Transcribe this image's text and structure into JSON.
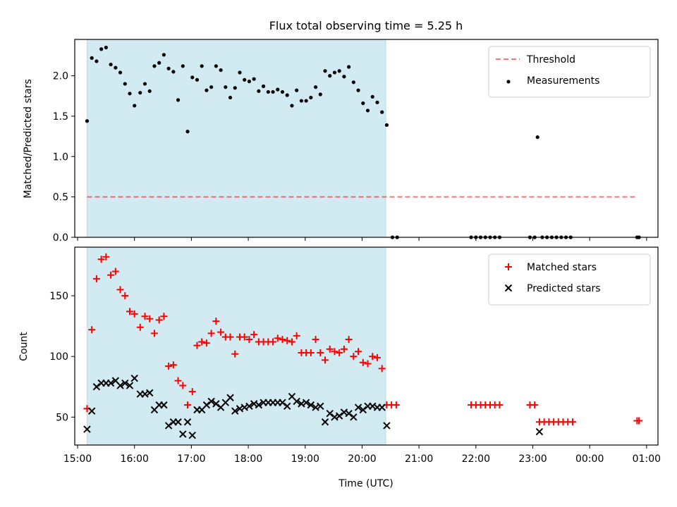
{
  "figure": {
    "title": "Flux total observing time = 5.25 h",
    "xlabel": "Time (UTC)"
  },
  "colors": {
    "shade": "#add8e6",
    "threshold": "#ff0000",
    "measurement": "#000000",
    "matched": "#ff0000",
    "predicted": "#000000"
  },
  "chart_data": [
    {
      "type": "scatter",
      "panel": "top",
      "ylabel": "Matched/Predicted stars",
      "xlim": [
        "14:57",
        "01:12"
      ],
      "ylim": [
        0,
        2.45
      ],
      "yticks": [
        0.0,
        0.5,
        1.0,
        1.5,
        2.0
      ],
      "ytick_labels": [
        "0.0",
        "0.5",
        "1.0",
        "1.5",
        "2.0"
      ],
      "legend_position": "top-right",
      "shaded_interval": [
        "15:10",
        "20:25"
      ],
      "threshold": {
        "name": "Threshold",
        "value": 0.5,
        "x_range": [
          "15:10",
          "00:50"
        ]
      },
      "series": [
        {
          "name": "Measurements",
          "points": [
            [
              "15:10",
              1.44
            ],
            [
              "15:15",
              2.22
            ],
            [
              "15:20",
              2.18
            ],
            [
              "15:25",
              2.33
            ],
            [
              "15:30",
              2.35
            ],
            [
              "15:35",
              2.14
            ],
            [
              "15:40",
              2.1
            ],
            [
              "15:45",
              2.04
            ],
            [
              "15:50",
              1.9
            ],
            [
              "15:55",
              1.78
            ],
            [
              "16:00",
              1.63
            ],
            [
              "16:06",
              1.79
            ],
            [
              "16:11",
              1.9
            ],
            [
              "16:16",
              1.81
            ],
            [
              "16:21",
              2.12
            ],
            [
              "16:26",
              2.16
            ],
            [
              "16:31",
              2.26
            ],
            [
              "16:36",
              2.09
            ],
            [
              "16:41",
              2.05
            ],
            [
              "16:46",
              1.7
            ],
            [
              "16:51",
              2.12
            ],
            [
              "16:56",
              1.31
            ],
            [
              "17:01",
              1.98
            ],
            [
              "17:06",
              1.95
            ],
            [
              "17:11",
              2.12
            ],
            [
              "17:16",
              1.82
            ],
            [
              "17:21",
              1.86
            ],
            [
              "17:26",
              2.12
            ],
            [
              "17:31",
              2.07
            ],
            [
              "17:36",
              1.86
            ],
            [
              "17:41",
              1.73
            ],
            [
              "17:46",
              1.85
            ],
            [
              "17:51",
              2.04
            ],
            [
              "17:56",
              1.95
            ],
            [
              "18:01",
              1.93
            ],
            [
              "18:06",
              1.96
            ],
            [
              "18:11",
              1.81
            ],
            [
              "18:16",
              1.87
            ],
            [
              "18:21",
              1.8
            ],
            [
              "18:26",
              1.8
            ],
            [
              "18:31",
              1.83
            ],
            [
              "18:36",
              1.8
            ],
            [
              "18:41",
              1.76
            ],
            [
              "18:46",
              1.63
            ],
            [
              "18:51",
              1.82
            ],
            [
              "18:56",
              1.69
            ],
            [
              "19:01",
              1.69
            ],
            [
              "19:06",
              1.73
            ],
            [
              "19:11",
              1.86
            ],
            [
              "19:16",
              1.77
            ],
            [
              "19:21",
              2.06
            ],
            [
              "19:26",
              2.0
            ],
            [
              "19:31",
              2.04
            ],
            [
              "19:36",
              2.06
            ],
            [
              "19:41",
              1.99
            ],
            [
              "19:46",
              2.11
            ],
            [
              "19:51",
              1.92
            ],
            [
              "19:56",
              1.82
            ],
            [
              "20:01",
              1.66
            ],
            [
              "20:06",
              1.57
            ],
            [
              "20:11",
              1.74
            ],
            [
              "20:16",
              1.67
            ],
            [
              "20:21",
              1.55
            ],
            [
              "20:26",
              1.39
            ],
            [
              "20:32",
              0.0
            ],
            [
              "20:37",
              0.0
            ],
            [
              "21:55",
              0.0
            ],
            [
              "22:00",
              0.0
            ],
            [
              "22:05",
              0.0
            ],
            [
              "22:10",
              0.0
            ],
            [
              "22:15",
              0.0
            ],
            [
              "22:20",
              0.0
            ],
            [
              "22:25",
              0.0
            ],
            [
              "22:57",
              0.0
            ],
            [
              "23:02",
              0.0
            ],
            [
              "23:05",
              1.24
            ],
            [
              "23:10",
              0.0
            ],
            [
              "23:15",
              0.0
            ],
            [
              "23:20",
              0.0
            ],
            [
              "23:25",
              0.0
            ],
            [
              "23:30",
              0.0
            ],
            [
              "23:35",
              0.0
            ],
            [
              "23:40",
              0.0
            ],
            [
              "00:50",
              0.0
            ],
            [
              "00:52",
              0.0
            ]
          ]
        }
      ]
    },
    {
      "type": "scatter",
      "panel": "bottom",
      "ylabel": "Count",
      "xlim": [
        "14:57",
        "01:12"
      ],
      "ylim": [
        27,
        190
      ],
      "yticks": [
        50,
        100,
        150
      ],
      "ytick_labels": [
        "50",
        "100",
        "150"
      ],
      "xticks": [
        "15:00",
        "16:00",
        "17:00",
        "18:00",
        "19:00",
        "20:00",
        "21:00",
        "22:00",
        "23:00",
        "00:00",
        "01:00"
      ],
      "xtick_labels": [
        "15:00",
        "16:00",
        "17:00",
        "18:00",
        "19:00",
        "20:00",
        "21:00",
        "22:00",
        "23:00",
        "00:00",
        "01:00"
      ],
      "legend_position": "top-right",
      "shaded_interval": [
        "15:10",
        "20:25"
      ],
      "series": [
        {
          "name": "Matched stars",
          "marker": "plus",
          "points": [
            [
              "15:10",
              57
            ],
            [
              "15:15",
              122
            ],
            [
              "15:20",
              164
            ],
            [
              "15:25",
              180
            ],
            [
              "15:30",
              182
            ],
            [
              "15:35",
              167
            ],
            [
              "15:40",
              170
            ],
            [
              "15:45",
              155
            ],
            [
              "15:50",
              150
            ],
            [
              "15:55",
              137
            ],
            [
              "16:00",
              135
            ],
            [
              "16:06",
              124
            ],
            [
              "16:11",
              133
            ],
            [
              "16:16",
              131
            ],
            [
              "16:21",
              119
            ],
            [
              "16:26",
              130
            ],
            [
              "16:31",
              133
            ],
            [
              "16:36",
              92
            ],
            [
              "16:41",
              93
            ],
            [
              "16:46",
              80
            ],
            [
              "16:51",
              76
            ],
            [
              "16:56",
              60
            ],
            [
              "17:01",
              71
            ],
            [
              "17:06",
              109
            ],
            [
              "17:11",
              112
            ],
            [
              "17:16",
              111
            ],
            [
              "17:21",
              119
            ],
            [
              "17:26",
              129
            ],
            [
              "17:31",
              120
            ],
            [
              "17:36",
              116
            ],
            [
              "17:41",
              116
            ],
            [
              "17:46",
              102
            ],
            [
              "17:51",
              116
            ],
            [
              "17:56",
              116
            ],
            [
              "18:01",
              114
            ],
            [
              "18:06",
              118
            ],
            [
              "18:11",
              112
            ],
            [
              "18:16",
              112
            ],
            [
              "18:21",
              112
            ],
            [
              "18:26",
              112
            ],
            [
              "18:31",
              115
            ],
            [
              "18:36",
              114
            ],
            [
              "18:41",
              113
            ],
            [
              "18:46",
              112
            ],
            [
              "18:51",
              117
            ],
            [
              "18:56",
              103
            ],
            [
              "19:01",
              103
            ],
            [
              "19:06",
              103
            ],
            [
              "19:11",
              114
            ],
            [
              "19:16",
              103
            ],
            [
              "19:21",
              97
            ],
            [
              "19:26",
              106
            ],
            [
              "19:31",
              104
            ],
            [
              "19:36",
              103
            ],
            [
              "19:41",
              106
            ],
            [
              "19:46",
              114
            ],
            [
              "19:51",
              100
            ],
            [
              "19:56",
              104
            ],
            [
              "20:01",
              95
            ],
            [
              "20:06",
              94
            ],
            [
              "20:11",
              100
            ],
            [
              "20:16",
              99
            ],
            [
              "20:21",
              90
            ],
            [
              "20:26",
              60
            ],
            [
              "20:31",
              60
            ],
            [
              "20:36",
              60
            ],
            [
              "21:55",
              60
            ],
            [
              "22:00",
              60
            ],
            [
              "22:05",
              60
            ],
            [
              "22:10",
              60
            ],
            [
              "22:15",
              60
            ],
            [
              "22:20",
              60
            ],
            [
              "22:25",
              60
            ],
            [
              "22:57",
              60
            ],
            [
              "23:02",
              60
            ],
            [
              "23:07",
              46
            ],
            [
              "23:12",
              46
            ],
            [
              "23:17",
              46
            ],
            [
              "23:22",
              46
            ],
            [
              "23:27",
              46
            ],
            [
              "23:32",
              46
            ],
            [
              "23:37",
              46
            ],
            [
              "23:42",
              46
            ],
            [
              "00:50",
              47
            ],
            [
              "00:52",
              47
            ]
          ]
        },
        {
          "name": "Predicted stars",
          "marker": "x",
          "points": [
            [
              "15:10",
              40
            ],
            [
              "15:15",
              55
            ],
            [
              "15:20",
              75
            ],
            [
              "15:25",
              78
            ],
            [
              "15:30",
              78
            ],
            [
              "15:35",
              78
            ],
            [
              "15:40",
              80
            ],
            [
              "15:45",
              76
            ],
            [
              "15:50",
              78
            ],
            [
              "15:55",
              76
            ],
            [
              "16:00",
              82
            ],
            [
              "16:06",
              69
            ],
            [
              "16:11",
              69
            ],
            [
              "16:16",
              70
            ],
            [
              "16:21",
              56
            ],
            [
              "16:26",
              60
            ],
            [
              "16:31",
              60
            ],
            [
              "16:36",
              43
            ],
            [
              "16:41",
              46
            ],
            [
              "16:46",
              46
            ],
            [
              "16:51",
              36
            ],
            [
              "16:56",
              46
            ],
            [
              "17:01",
              35
            ],
            [
              "17:06",
              56
            ],
            [
              "17:11",
              56
            ],
            [
              "17:16",
              60
            ],
            [
              "17:21",
              63
            ],
            [
              "17:26",
              61
            ],
            [
              "17:31",
              58
            ],
            [
              "17:36",
              62
            ],
            [
              "17:41",
              66
            ],
            [
              "17:46",
              55
            ],
            [
              "17:51",
              57
            ],
            [
              "17:56",
              58
            ],
            [
              "18:01",
              59
            ],
            [
              "18:06",
              61
            ],
            [
              "18:11",
              60
            ],
            [
              "18:16",
              62
            ],
            [
              "18:21",
              62
            ],
            [
              "18:26",
              62
            ],
            [
              "18:31",
              62
            ],
            [
              "18:36",
              62
            ],
            [
              "18:41",
              59
            ],
            [
              "18:46",
              67
            ],
            [
              "18:51",
              63
            ],
            [
              "18:56",
              61
            ],
            [
              "19:01",
              62
            ],
            [
              "19:06",
              60
            ],
            [
              "19:11",
              58
            ],
            [
              "19:16",
              59
            ],
            [
              "19:21",
              46
            ],
            [
              "19:26",
              53
            ],
            [
              "19:31",
              50
            ],
            [
              "19:36",
              51
            ],
            [
              "19:41",
              54
            ],
            [
              "19:46",
              53
            ],
            [
              "19:51",
              50
            ],
            [
              "19:56",
              58
            ],
            [
              "20:01",
              56
            ],
            [
              "20:06",
              59
            ],
            [
              "20:11",
              59
            ],
            [
              "20:16",
              58
            ],
            [
              "20:21",
              58
            ],
            [
              "20:26",
              43
            ],
            [
              "23:07",
              38
            ]
          ]
        }
      ]
    }
  ]
}
